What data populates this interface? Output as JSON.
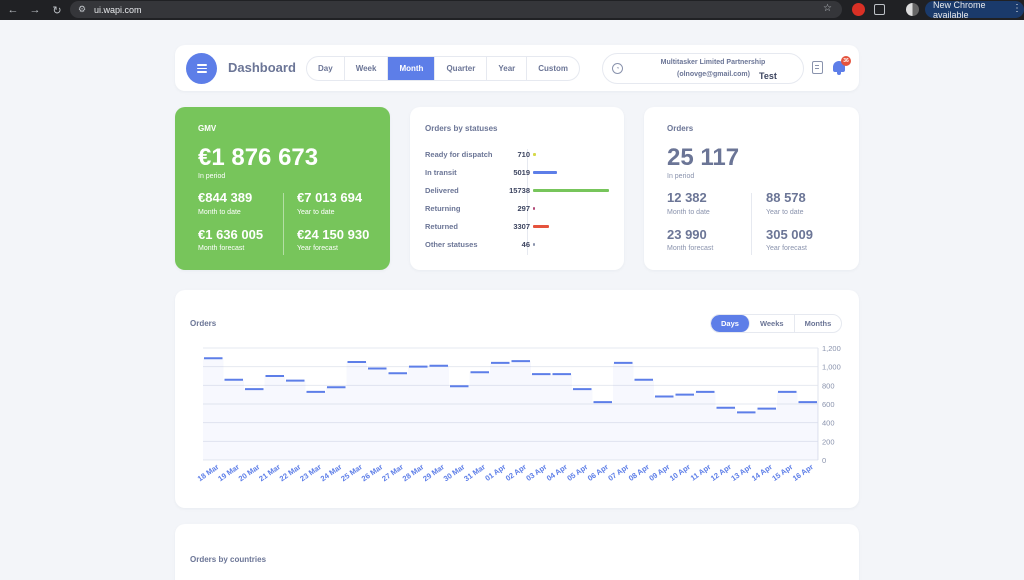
{
  "browser": {
    "url": "ui.wapi.com",
    "new_chrome_label": "New Chrome available"
  },
  "header": {
    "title": "Dashboard",
    "periods": [
      "Day",
      "Week",
      "Month",
      "Quarter",
      "Year",
      "Custom"
    ],
    "active_period": "Month",
    "company_name": "Multitasker Limited Partnership",
    "company_email": "(olnovge@gmail.com)",
    "company_tag": "Test",
    "notification_count": "36"
  },
  "gmv": {
    "title": "GMV",
    "value": "€1 876 673",
    "value_label": "In period",
    "month_to_date": "€844 389",
    "month_to_date_label": "Month to date",
    "year_to_date": "€7 013 694",
    "year_to_date_label": "Year to date",
    "month_forecast": "€1 636 005",
    "month_forecast_label": "Month forecast",
    "year_forecast": "€24 150 930",
    "year_forecast_label": "Year forecast"
  },
  "statuses": {
    "title": "Orders by statuses",
    "items": [
      {
        "label": "Ready for dispatch",
        "count": "710",
        "value": 710,
        "color": "#d6d94a"
      },
      {
        "label": "In transit",
        "count": "5019",
        "value": 5019,
        "color": "#5d7ee8"
      },
      {
        "label": "Delivered",
        "count": "15738",
        "value": 15738,
        "color": "#77c55b"
      },
      {
        "label": "Returning",
        "count": "297",
        "value": 297,
        "color": "#b24a78"
      },
      {
        "label": "Returned",
        "count": "3307",
        "value": 3307,
        "color": "#e5533d"
      },
      {
        "label": "Other statuses",
        "count": "46",
        "value": 46,
        "color": "#8a93ad"
      }
    ]
  },
  "orders_stats": {
    "title": "Orders",
    "value": "25 117",
    "value_label": "In period",
    "month_to_date": "12 382",
    "month_to_date_label": "Month to date",
    "year_to_date": "88 578",
    "year_to_date_label": "Year to date",
    "month_forecast": "23 990",
    "month_forecast_label": "Month forecast",
    "year_forecast": "305 009",
    "year_forecast_label": "Year forecast"
  },
  "orders_chart": {
    "title": "Orders",
    "granularity": [
      "Days",
      "Weeks",
      "Months"
    ],
    "active_granularity": "Days"
  },
  "countries": {
    "title": "Orders by countries"
  },
  "chart_data": {
    "type": "line",
    "title": "Orders",
    "xlabel": "",
    "ylabel": "",
    "ylim": [
      0,
      1200
    ],
    "yticks": [
      "0",
      "200",
      "400",
      "600",
      "800",
      "1,000",
      "1,200"
    ],
    "categories": [
      "18 Mar",
      "19 Mar",
      "20 Mar",
      "21 Mar",
      "22 Mar",
      "23 Mar",
      "24 Mar",
      "25 Mar",
      "26 Mar",
      "27 Mar",
      "28 Mar",
      "29 Mar",
      "30 Mar",
      "31 Mar",
      "01 Apr",
      "02 Apr",
      "03 Apr",
      "04 Apr",
      "05 Apr",
      "06 Apr",
      "07 Apr",
      "08 Apr",
      "09 Apr",
      "10 Apr",
      "11 Apr",
      "12 Apr",
      "13 Apr",
      "14 Apr",
      "15 Apr",
      "16 Apr"
    ],
    "series": [
      {
        "values": [
          1090,
          860,
          760,
          900,
          850,
          730,
          780,
          1050,
          980,
          930,
          1000,
          1010,
          790,
          940,
          1040,
          1060,
          920,
          920,
          760,
          620,
          1040,
          860,
          680,
          700,
          730,
          560,
          510,
          550,
          730,
          620
        ],
        "color": "#5d7ee8"
      }
    ],
    "grid": true,
    "y_axis_side": "right"
  }
}
